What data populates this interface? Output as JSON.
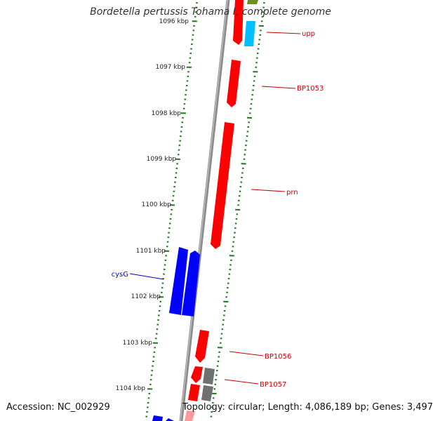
{
  "title": "Bordetella pertussis Tohama I, complete genome",
  "footer": {
    "accession": "Accession: NC_002929",
    "topology": "Topology: circular; Length: 4,086,189 bp; Genes: 3,497"
  },
  "colors": {
    "forward_gene": "#ff0000",
    "reverse_gene": "#0000ff",
    "tick": "#1a7a1a",
    "backbone": "#8c8c8c",
    "cyan_feature": "#00bfff",
    "olive_feature": "#6b8e23",
    "gray_feature": "#707070"
  },
  "axis": {
    "tick_labels": [
      "1096 kbp",
      "1097 kbp",
      "1098 kbp",
      "1099 kbp",
      "1100 kbp",
      "1101 kbp",
      "1102 kbp",
      "1103 kbp",
      "1104 kbp"
    ]
  },
  "gene_labels": [
    {
      "name": "upp",
      "color": "#cc0000"
    },
    {
      "name": "BP1053",
      "color": "#cc0000"
    },
    {
      "name": "prn",
      "color": "#cc0000"
    },
    {
      "name": "cysG",
      "color": "#0000cc"
    },
    {
      "name": "BP1056",
      "color": "#cc0000"
    },
    {
      "name": "BP1057",
      "color": "#cc0000"
    }
  ]
}
